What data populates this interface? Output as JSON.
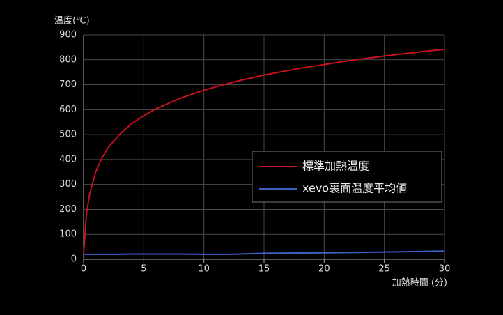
{
  "chart_data": {
    "type": "line",
    "y_label": "温度(℃)",
    "x_label": "加熱時間 (分)",
    "x": [
      0,
      0.25,
      0.5,
      1,
      1.5,
      2,
      3,
      4,
      5,
      6,
      8,
      10,
      12,
      13,
      15,
      18,
      20,
      22,
      25,
      28,
      30
    ],
    "series": [
      {
        "name": "標準加熱温度",
        "color": "#c8101e",
        "values": [
          20,
          185,
          261,
          349,
          404,
          445,
          502,
          544,
          576,
          603,
          645,
          678,
          705,
          717,
          739,
          766,
          781,
          796,
          815,
          832,
          842
        ]
      },
      {
        "name": "xevo裏面温度平均値",
        "color": "#3c62c4",
        "values": [
          20,
          20,
          20,
          20,
          20,
          20,
          20,
          21,
          21,
          21,
          21,
          20,
          20,
          21,
          24,
          25,
          26,
          27,
          29,
          31,
          33
        ]
      }
    ],
    "xlim": [
      0,
      30
    ],
    "xticks": [
      0,
      5,
      10,
      15,
      20,
      25,
      30
    ],
    "ylim": [
      0,
      900
    ],
    "yticks": [
      0,
      100,
      200,
      300,
      400,
      500,
      600,
      700,
      800,
      900
    ],
    "grid": true
  }
}
